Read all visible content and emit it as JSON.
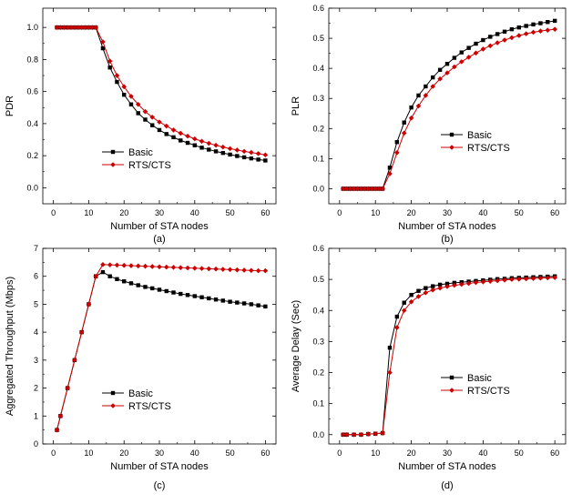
{
  "chart_data": [
    {
      "type": "line",
      "panel": "(a)",
      "title": "",
      "xlabel": "Number of STA nodes",
      "ylabel": "PDR",
      "xlim": [
        -3,
        63
      ],
      "ylim": [
        -0.1,
        1.12
      ],
      "xticks": [
        0,
        10,
        20,
        30,
        40,
        50,
        60
      ],
      "xtick_labels": [
        "0",
        "10",
        "20",
        "30",
        "40",
        "50",
        "60"
      ],
      "yticks": [
        0.0,
        0.2,
        0.4,
        0.6,
        0.8,
        1.0
      ],
      "ytick_labels": [
        "0.0",
        "0.2",
        "0.4",
        "0.6",
        "0.8",
        "1.0"
      ],
      "legend": "lower-left",
      "x": [
        1,
        2,
        3,
        4,
        5,
        6,
        7,
        8,
        9,
        10,
        11,
        12,
        14,
        16,
        18,
        20,
        22,
        24,
        26,
        28,
        30,
        32,
        34,
        36,
        38,
        40,
        42,
        44,
        46,
        48,
        50,
        52,
        54,
        56,
        58,
        60
      ],
      "series": [
        {
          "name": "Basic",
          "color": "#000000",
          "marker": "square",
          "values": [
            1,
            1,
            1,
            1,
            1,
            1,
            1,
            1,
            1,
            1,
            1,
            1,
            0.87,
            0.75,
            0.66,
            0.58,
            0.52,
            0.465,
            0.425,
            0.39,
            0.36,
            0.335,
            0.315,
            0.295,
            0.28,
            0.265,
            0.25,
            0.238,
            0.227,
            0.217,
            0.207,
            0.198,
            0.19,
            0.183,
            0.176,
            0.17
          ]
        },
        {
          "name": "RTS/CTS",
          "color": "#cc0000",
          "marker": "diamond",
          "values": [
            1,
            1,
            1,
            1,
            1,
            1,
            1,
            1,
            1,
            1,
            1,
            1,
            0.91,
            0.79,
            0.7,
            0.63,
            0.57,
            0.52,
            0.475,
            0.44,
            0.41,
            0.385,
            0.36,
            0.34,
            0.322,
            0.305,
            0.29,
            0.277,
            0.265,
            0.254,
            0.244,
            0.235,
            0.227,
            0.22,
            0.213,
            0.205
          ]
        }
      ]
    },
    {
      "type": "line",
      "panel": "(b)",
      "title": "",
      "xlabel": "Number of STA nodes",
      "ylabel": "PLR",
      "xlim": [
        -3,
        63
      ],
      "ylim": [
        -0.05,
        0.6
      ],
      "xticks": [
        0,
        10,
        20,
        30,
        40,
        50,
        60
      ],
      "xtick_labels": [
        "0",
        "10",
        "20",
        "30",
        "40",
        "50",
        "60"
      ],
      "yticks": [
        0.0,
        0.1,
        0.2,
        0.3,
        0.4,
        0.5,
        0.6
      ],
      "ytick_labels": [
        "0.0",
        "0.1",
        "0.2",
        "0.3",
        "0.4",
        "0.5",
        "0.6"
      ],
      "legend": "center-right",
      "x": [
        1,
        2,
        3,
        4,
        5,
        6,
        7,
        8,
        9,
        10,
        11,
        12,
        14,
        16,
        18,
        20,
        22,
        24,
        26,
        28,
        30,
        32,
        34,
        36,
        38,
        40,
        42,
        44,
        46,
        48,
        50,
        52,
        54,
        56,
        58,
        60
      ],
      "series": [
        {
          "name": "Basic",
          "color": "#000000",
          "marker": "square",
          "values": [
            0,
            0,
            0,
            0,
            0,
            0,
            0,
            0,
            0,
            0,
            0,
            0,
            0.07,
            0.155,
            0.22,
            0.27,
            0.31,
            0.34,
            0.37,
            0.395,
            0.415,
            0.435,
            0.453,
            0.468,
            0.482,
            0.494,
            0.505,
            0.514,
            0.522,
            0.53,
            0.536,
            0.541,
            0.546,
            0.55,
            0.554,
            0.558
          ]
        },
        {
          "name": "RTS/CTS",
          "color": "#cc0000",
          "marker": "diamond",
          "values": [
            0,
            0,
            0,
            0,
            0,
            0,
            0,
            0,
            0,
            0,
            0,
            0,
            0.05,
            0.12,
            0.185,
            0.235,
            0.275,
            0.31,
            0.34,
            0.365,
            0.385,
            0.405,
            0.422,
            0.437,
            0.451,
            0.464,
            0.475,
            0.485,
            0.494,
            0.502,
            0.509,
            0.515,
            0.52,
            0.524,
            0.527,
            0.53
          ]
        }
      ]
    },
    {
      "type": "line",
      "panel": "(c)",
      "title": "",
      "xlabel": "Number of STA nodes",
      "ylabel": "Aggregated Throughput (Mbps)",
      "xlim": [
        -3,
        63
      ],
      "ylim": [
        0,
        7
      ],
      "xticks": [
        0,
        10,
        20,
        30,
        40,
        50,
        60
      ],
      "xtick_labels": [
        "0",
        "10",
        "20",
        "30",
        "40",
        "50",
        "60"
      ],
      "yticks": [
        0,
        1,
        2,
        3,
        4,
        5,
        6,
        7
      ],
      "ytick_labels": [
        "0",
        "1",
        "2",
        "3",
        "4",
        "5",
        "6",
        "7"
      ],
      "legend": "lower-center",
      "x": [
        1,
        2,
        4,
        6,
        8,
        10,
        12,
        14,
        16,
        18,
        20,
        22,
        24,
        26,
        28,
        30,
        32,
        34,
        36,
        38,
        40,
        42,
        44,
        46,
        48,
        50,
        52,
        54,
        56,
        58,
        60
      ],
      "series": [
        {
          "name": "Basic",
          "color": "#000000",
          "marker": "square",
          "values": [
            0.5,
            1,
            2,
            3,
            4,
            5,
            6,
            6.15,
            6.0,
            5.9,
            5.82,
            5.75,
            5.68,
            5.62,
            5.57,
            5.52,
            5.47,
            5.42,
            5.37,
            5.33,
            5.29,
            5.25,
            5.21,
            5.17,
            5.13,
            5.09,
            5.06,
            5.03,
            5.0,
            4.96,
            4.92
          ]
        },
        {
          "name": "RTS/CTS",
          "color": "#cc0000",
          "marker": "diamond",
          "values": [
            0.5,
            1,
            2,
            3,
            4,
            5,
            6,
            6.42,
            6.41,
            6.4,
            6.39,
            6.38,
            6.37,
            6.36,
            6.35,
            6.34,
            6.33,
            6.32,
            6.31,
            6.3,
            6.29,
            6.28,
            6.27,
            6.26,
            6.25,
            6.24,
            6.23,
            6.22,
            6.21,
            6.2,
            6.2
          ]
        }
      ]
    },
    {
      "type": "line",
      "panel": "(d)",
      "title": "",
      "xlabel": "Number of STA nodes",
      "ylabel": "Average Delay (Sec)",
      "xlim": [
        -3,
        63
      ],
      "ylim": [
        -0.03,
        0.6
      ],
      "xticks": [
        0,
        10,
        20,
        30,
        40,
        50,
        60
      ],
      "xtick_labels": [
        "0",
        "10",
        "20",
        "30",
        "40",
        "50",
        "60"
      ],
      "yticks": [
        0.0,
        0.1,
        0.2,
        0.3,
        0.4,
        0.5,
        0.6
      ],
      "ytick_labels": [
        "0.0",
        "0.1",
        "0.2",
        "0.3",
        "0.4",
        "0.5",
        "0.6"
      ],
      "legend": "center-right",
      "x": [
        1,
        2,
        4,
        6,
        8,
        10,
        12,
        14,
        16,
        18,
        20,
        22,
        24,
        26,
        28,
        30,
        32,
        34,
        36,
        38,
        40,
        42,
        44,
        46,
        48,
        50,
        52,
        54,
        56,
        58,
        60
      ],
      "series": [
        {
          "name": "Basic",
          "color": "#000000",
          "marker": "square",
          "values": [
            0,
            0,
            0,
            0,
            0.002,
            0.003,
            0.005,
            0.28,
            0.38,
            0.425,
            0.45,
            0.463,
            0.472,
            0.478,
            0.483,
            0.486,
            0.489,
            0.491,
            0.493,
            0.495,
            0.497,
            0.499,
            0.501,
            0.502,
            0.504,
            0.505,
            0.506,
            0.507,
            0.508,
            0.509,
            0.51
          ]
        },
        {
          "name": "RTS/CTS",
          "color": "#cc0000",
          "marker": "diamond",
          "values": [
            0,
            0,
            0,
            0,
            0.002,
            0.003,
            0.005,
            0.2,
            0.345,
            0.4,
            0.428,
            0.445,
            0.457,
            0.466,
            0.472,
            0.477,
            0.481,
            0.484,
            0.487,
            0.49,
            0.492,
            0.494,
            0.496,
            0.498,
            0.5,
            0.501,
            0.502,
            0.503,
            0.504,
            0.505,
            0.506
          ]
        }
      ]
    }
  ]
}
